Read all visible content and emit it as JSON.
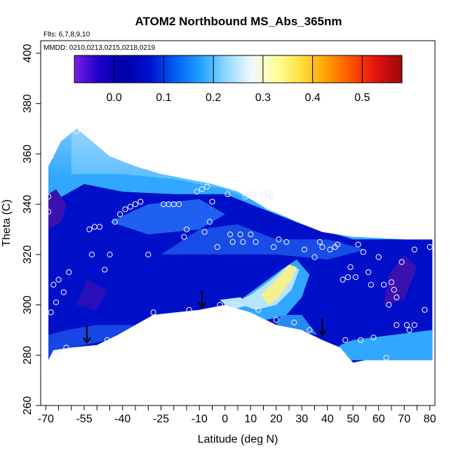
{
  "chart_data": {
    "type": "heatmap",
    "title": "ATOM2 Northbound MS_Abs_365nm",
    "flights_label": "Flts: 6,7,8,9,10",
    "dates_label": "MMDD: 0210,0213,0215,0218,0219",
    "xlabel": "Latitude (deg N)",
    "ylabel": "Theta (C)",
    "xlim": [
      -72,
      82
    ],
    "ylim": [
      260,
      405
    ],
    "x_ticks": [
      -70,
      -55,
      -40,
      -25,
      -10,
      0,
      10,
      20,
      30,
      40,
      50,
      60,
      70,
      80
    ],
    "x_minor_ticks": [
      -65,
      -60,
      -50,
      -45,
      -35,
      -30,
      -20,
      -15,
      -5,
      5,
      15,
      25,
      35,
      45,
      55,
      65,
      75
    ],
    "x_tick_labels": [
      "-70",
      "-55",
      "-40",
      "-25",
      "-10",
      "0",
      "10",
      "20",
      "30",
      "40",
      "50",
      "60",
      "70",
      "80"
    ],
    "y_ticks": [
      260,
      280,
      300,
      320,
      340,
      360,
      380,
      400
    ],
    "y_tick_labels": [
      "260",
      "280",
      "300",
      "320",
      "340",
      "360",
      "380",
      "400"
    ],
    "colorbar": {
      "range": [
        -0.08,
        0.58
      ],
      "ticks": [
        0.0,
        0.1,
        0.2,
        0.3,
        0.4,
        0.5
      ],
      "tick_labels": [
        "0.0",
        "0.1",
        "0.2",
        "0.3",
        "0.4",
        "0.5"
      ],
      "colors": [
        "#7b1fe0",
        "#1a00c8",
        "#0000a8",
        "#0010d0",
        "#0060f0",
        "#20a0ff",
        "#90d8ff",
        "#f0f8ff",
        "#ffffa0",
        "#ffe040",
        "#ffa000",
        "#ff5000",
        "#e01010",
        "#9a0a0a"
      ]
    },
    "field_colors": {
      "background_blue": "#0010c8",
      "dark_purple": "#3a10b0",
      "mid_blue": "#2060f0",
      "light_blue": "#30a8ff",
      "pale_blue": "#b8e4ff",
      "yellow": "#f4f090"
    },
    "sample_points": [
      {
        "lat": -69,
        "theta": 343
      },
      {
        "lat": -69,
        "theta": 337
      },
      {
        "lat": -68,
        "theta": 359
      },
      {
        "lat": -67,
        "theta": 308
      },
      {
        "lat": -68,
        "theta": 297
      },
      {
        "lat": -66,
        "theta": 301
      },
      {
        "lat": -65,
        "theta": 310
      },
      {
        "lat": -63,
        "theta": 305
      },
      {
        "lat": -61,
        "theta": 313
      },
      {
        "lat": -66,
        "theta": 281
      },
      {
        "lat": -62,
        "theta": 283
      },
      {
        "lat": -58,
        "theta": 369
      },
      {
        "lat": -55,
        "theta": 369
      },
      {
        "lat": -53,
        "theta": 330
      },
      {
        "lat": -51,
        "theta": 331
      },
      {
        "lat": -49,
        "theta": 331
      },
      {
        "lat": -52,
        "theta": 320
      },
      {
        "lat": -47,
        "theta": 314
      },
      {
        "lat": -45,
        "theta": 320
      },
      {
        "lat": -43,
        "theta": 333
      },
      {
        "lat": -41,
        "theta": 336
      },
      {
        "lat": -39,
        "theta": 338
      },
      {
        "lat": -37,
        "theta": 339
      },
      {
        "lat": -35,
        "theta": 340
      },
      {
        "lat": -33,
        "theta": 341
      },
      {
        "lat": -46,
        "theta": 286
      },
      {
        "lat": -30,
        "theta": 320
      },
      {
        "lat": -28,
        "theta": 297
      },
      {
        "lat": -24,
        "theta": 340
      },
      {
        "lat": -22,
        "theta": 340
      },
      {
        "lat": -20,
        "theta": 340
      },
      {
        "lat": -18,
        "theta": 340
      },
      {
        "lat": -16,
        "theta": 327
      },
      {
        "lat": -15,
        "theta": 330
      },
      {
        "lat": -14,
        "theta": 298
      },
      {
        "lat": -11,
        "theta": 345
      },
      {
        "lat": -9,
        "theta": 346
      },
      {
        "lat": -7,
        "theta": 347
      },
      {
        "lat": -8,
        "theta": 329
      },
      {
        "lat": -6,
        "theta": 333
      },
      {
        "lat": -5,
        "theta": 341
      },
      {
        "lat": -3,
        "theta": 323
      },
      {
        "lat": -2,
        "theta": 300
      },
      {
        "lat": 1,
        "theta": 344
      },
      {
        "lat": 2,
        "theta": 328
      },
      {
        "lat": 3,
        "theta": 325
      },
      {
        "lat": 4,
        "theta": 300
      },
      {
        "lat": 6,
        "theta": 328
      },
      {
        "lat": 7,
        "theta": 325
      },
      {
        "lat": 8,
        "theta": 343
      },
      {
        "lat": 10,
        "theta": 328
      },
      {
        "lat": 11,
        "theta": 344
      },
      {
        "lat": 12,
        "theta": 325
      },
      {
        "lat": 13,
        "theta": 298
      },
      {
        "lat": 15,
        "theta": 344
      },
      {
        "lat": 17,
        "theta": 344
      },
      {
        "lat": 18,
        "theta": 343
      },
      {
        "lat": 19,
        "theta": 323
      },
      {
        "lat": 20,
        "theta": 294
      },
      {
        "lat": 21,
        "theta": 326
      },
      {
        "lat": 24,
        "theta": 325
      },
      {
        "lat": 27,
        "theta": 293
      },
      {
        "lat": 31,
        "theta": 322
      },
      {
        "lat": 33,
        "theta": 290
      },
      {
        "lat": 35,
        "theta": 319
      },
      {
        "lat": 37,
        "theta": 325
      },
      {
        "lat": 38,
        "theta": 323
      },
      {
        "lat": 41,
        "theta": 322
      },
      {
        "lat": 43,
        "theta": 323
      },
      {
        "lat": 44,
        "theta": 324
      },
      {
        "lat": 46,
        "theta": 310
      },
      {
        "lat": 47,
        "theta": 286
      },
      {
        "lat": 48,
        "theta": 311
      },
      {
        "lat": 49,
        "theta": 315
      },
      {
        "lat": 51,
        "theta": 311
      },
      {
        "lat": 52,
        "theta": 324
      },
      {
        "lat": 53,
        "theta": 286
      },
      {
        "lat": 54,
        "theta": 321
      },
      {
        "lat": 56,
        "theta": 313
      },
      {
        "lat": 57,
        "theta": 308
      },
      {
        "lat": 58,
        "theta": 287
      },
      {
        "lat": 60,
        "theta": 319
      },
      {
        "lat": 62,
        "theta": 308
      },
      {
        "lat": 63,
        "theta": 279
      },
      {
        "lat": 64,
        "theta": 300
      },
      {
        "lat": 65,
        "theta": 309
      },
      {
        "lat": 66,
        "theta": 306
      },
      {
        "lat": 67,
        "theta": 303
      },
      {
        "lat": 67,
        "theta": 292
      },
      {
        "lat": 69,
        "theta": 317
      },
      {
        "lat": 71,
        "theta": 292
      },
      {
        "lat": 72,
        "theta": 290
      },
      {
        "lat": 74,
        "theta": 292
      },
      {
        "lat": 74,
        "theta": 322
      },
      {
        "lat": 78,
        "theta": 298
      },
      {
        "lat": 80,
        "theta": 323
      }
    ],
    "arrows": [
      {
        "lat": -54,
        "theta": 285
      },
      {
        "lat": -9,
        "theta": 299
      },
      {
        "lat": 38,
        "theta": 288
      }
    ]
  }
}
